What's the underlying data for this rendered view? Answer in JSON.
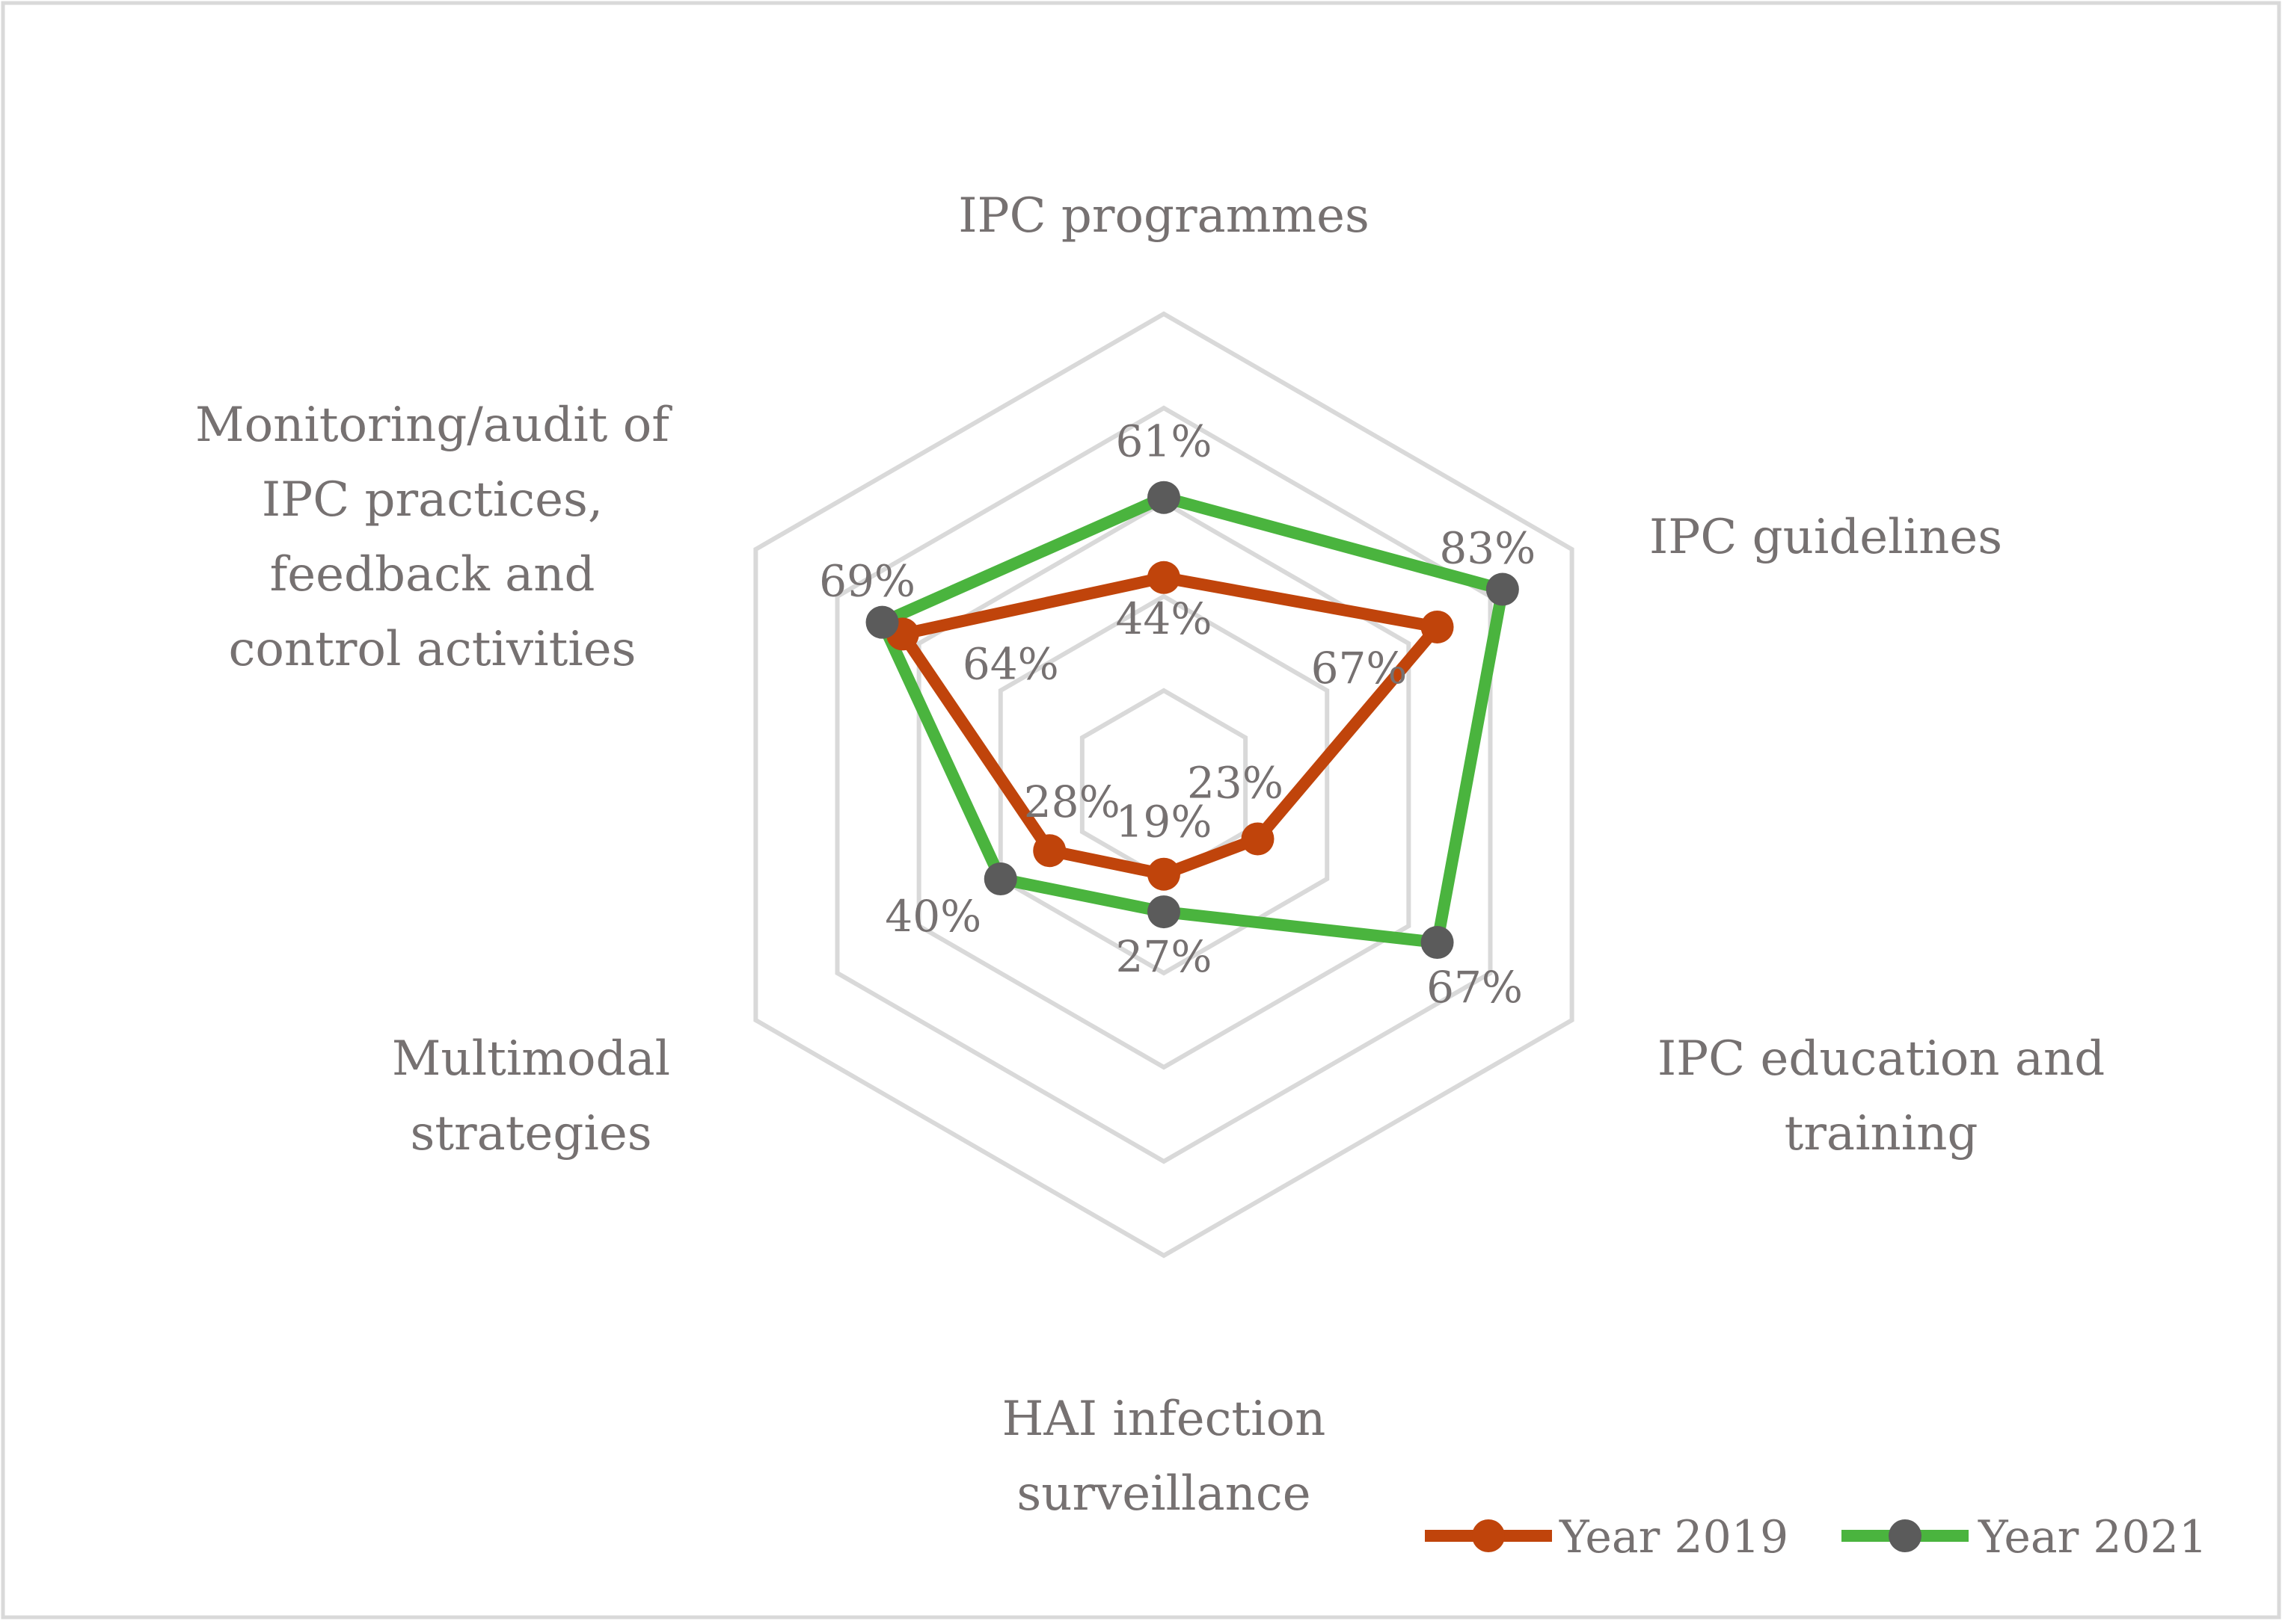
{
  "chart_data": {
    "type": "radar",
    "title": "",
    "categories": [
      [
        "IPC programmes"
      ],
      [
        "IPC guidelines"
      ],
      [
        "IPC education and",
        "training"
      ],
      [
        "HAI infection",
        "surveillance"
      ],
      [
        "Multimodal",
        "strategies"
      ],
      [
        "Monitoring/audit of",
        "IPC practices,",
        "feedback and",
        "control activities"
      ]
    ],
    "series": [
      {
        "name": "Year 2019",
        "values": [
          44,
          67,
          23,
          19,
          28,
          64
        ],
        "labels": [
          "44%",
          "67%",
          "23%",
          "19%",
          "28%",
          "64%"
        ],
        "line_color": "#C0440B",
        "marker_color": "#C0440B"
      },
      {
        "name": "Year 2021",
        "values": [
          61,
          83,
          67,
          27,
          40,
          69
        ],
        "labels": [
          "61%",
          "83%",
          "67%",
          "27%",
          "40%",
          "69%"
        ],
        "line_color": "#4AB43E",
        "marker_color": "#5B5B5B"
      }
    ],
    "rlim": [
      0,
      100
    ],
    "grid_levels": [
      20,
      40,
      60,
      80,
      100
    ],
    "grid_color": "#D9D9D9",
    "legend_position": "bottom-right"
  }
}
